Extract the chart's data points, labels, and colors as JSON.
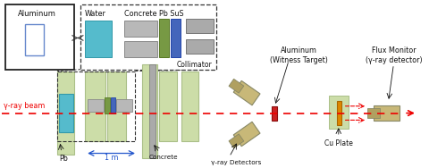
{
  "figsize": [
    4.8,
    1.88
  ],
  "dpi": 100,
  "bg_color": "#ffffff",
  "labels": {
    "aluminum_legend": "Aluminum",
    "water": "Water",
    "concrete_pb_sus": "Concrete Pb SuS",
    "collimator": "Collimator",
    "gamma_beam": "γ-ray beam",
    "pb": "Pb",
    "scale_1m": "1 m",
    "concrete": "Concrete",
    "gamma_detectors": "γ-ray Detectors",
    "aluminum_witness": "Aluminum\n(Witness Target)",
    "cu_plate": "Cu Plate",
    "flux_monitor": "Flux Monitor\n(γ-ray detector)"
  },
  "colors": {
    "green_shield": "#ccdda8",
    "green_shield_edge": "#aabf88",
    "water_fill": "#55bbcc",
    "water_edge": "#3399aa",
    "concrete_gray": "#b8b8b8",
    "concrete_edge": "#888888",
    "sus_blue": "#4466bb",
    "sus_blue_edge": "#2244aa",
    "sus_green": "#779944",
    "sus_green_edge": "#557722",
    "aluminum_blue": "#6688cc",
    "aluminum_edge": "#4455aa",
    "collimator_gray": "#aaaaaa",
    "collimator_edge": "#777777",
    "cu_orange": "#dd8800",
    "cu_edge": "#aa6600",
    "detector_body": "#c8b878",
    "detector_head": "#b0a060",
    "detector_edge": "#888866",
    "red_beam": "#ee0000",
    "black": "#111111",
    "dkgray": "#333333",
    "blue_scale": "#2255cc"
  }
}
